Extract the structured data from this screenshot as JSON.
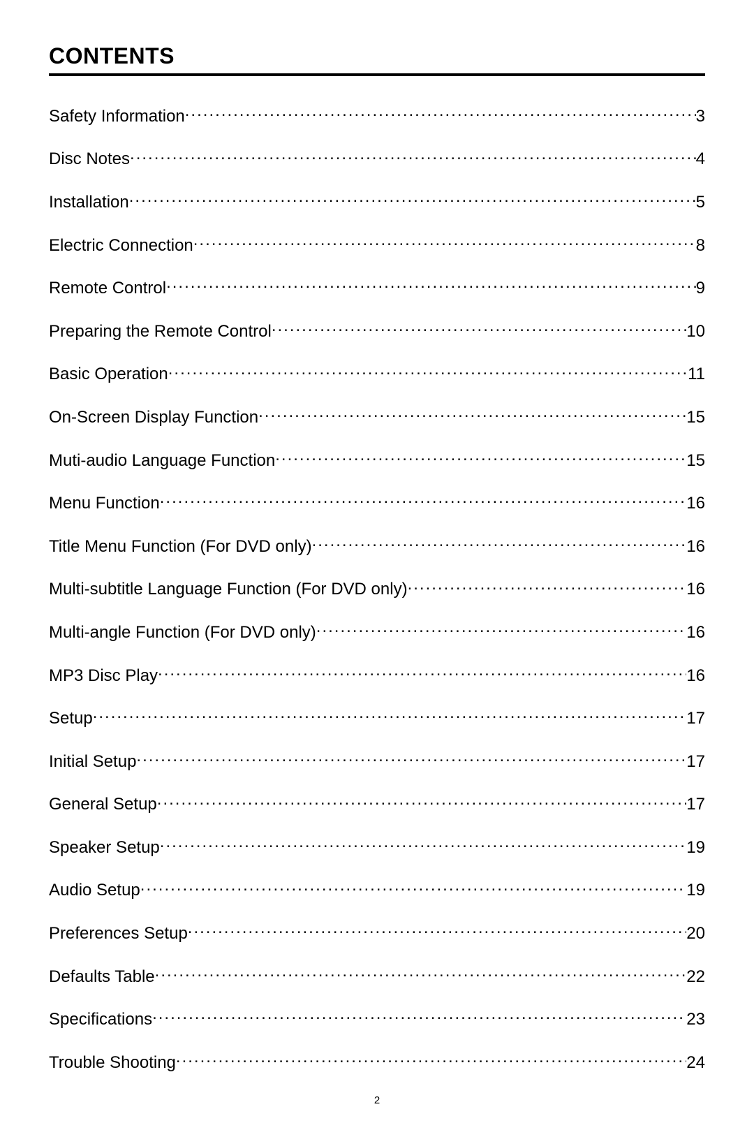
{
  "heading": "CONTENTS",
  "page_number": "2",
  "text_color": "#000000",
  "background_color": "#ffffff",
  "heading_fontsize": 32,
  "entry_fontsize": 24,
  "entries": [
    {
      "label": "Safety Information ",
      "page": "3"
    },
    {
      "label": "Disc Notes ",
      "page": "4"
    },
    {
      "label": "Installation",
      "page": "5"
    },
    {
      "label": "Electric Connection ",
      "page": "8"
    },
    {
      "label": "Remote Control",
      "page": "9"
    },
    {
      "label": "Preparing the Remote Control",
      "page": "10"
    },
    {
      "label": "Basic Operation ",
      "page": "11"
    },
    {
      "label": "On-Screen Display Function",
      "page": "15"
    },
    {
      "label": "Muti-audio Language Function",
      "page": "15"
    },
    {
      "label": "Menu Function",
      "page": "16"
    },
    {
      "label": "Title Menu Function (For DVD only)",
      "page": "16"
    },
    {
      "label": "Multi-subtitle Language Function (For DVD only)",
      "page": "16"
    },
    {
      "label": "Multi-angle Function (For DVD only)",
      "page": "16"
    },
    {
      "label": "MP3 Disc Play",
      "page": "16"
    },
    {
      "label": "Setup ",
      "page": "17"
    },
    {
      "label": "Initial Setup ",
      "page": "17"
    },
    {
      "label": "General Setup",
      "page": "17"
    },
    {
      "label": "Speaker Setup ",
      "page": "19"
    },
    {
      "label": "Audio Setup ",
      "page": "19"
    },
    {
      "label": "Preferences Setup ",
      "page": "20"
    },
    {
      "label": "Defaults Table ",
      "page": "22"
    },
    {
      "label": "Specifications ",
      "page": "23"
    },
    {
      "label": "Trouble Shooting",
      "page": "24"
    }
  ]
}
